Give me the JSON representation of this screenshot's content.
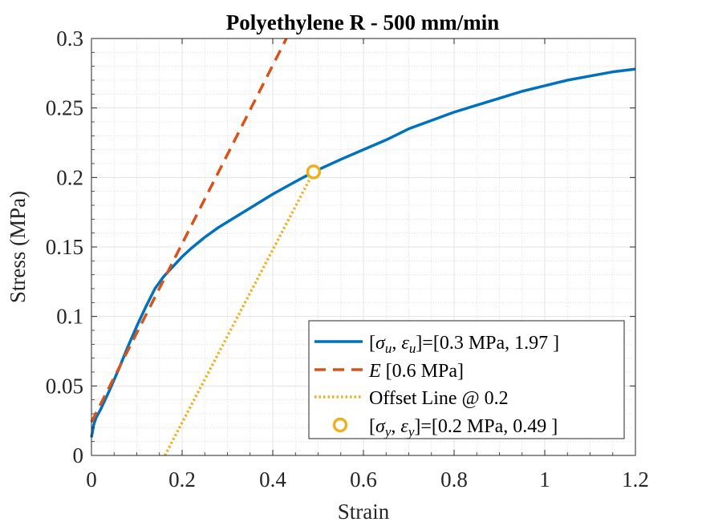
{
  "chart_data": {
    "type": "line",
    "title": "Polyethylene R - 500 mm/min",
    "xlabel": "Strain",
    "ylabel": "Stress (MPa)",
    "xlim": [
      0,
      1.2
    ],
    "ylim": [
      0,
      0.3
    ],
    "xticks": [
      0,
      0.2,
      0.4,
      0.6,
      0.8,
      1,
      1.2
    ],
    "xtick_labels": [
      "0",
      "0.2",
      "0.4",
      "0.6",
      "0.8",
      "1",
      "1.2"
    ],
    "yticks": [
      0,
      0.05,
      0.1,
      0.15,
      0.2,
      0.25,
      0.3
    ],
    "ytick_labels": [
      "0",
      "0.05",
      "0.1",
      "0.15",
      "0.2",
      "0.25",
      "0.3"
    ],
    "grid": true,
    "minor_grid": true,
    "legend_placement": "bottom-right",
    "series": [
      {
        "name": "[σu, εu]=[0.3 MPa, 1.97 ]",
        "legend_main": "[σ",
        "legend_sub1": "u",
        "legend_mid": ", ε",
        "legend_sub2": "u",
        "legend_tail": "]=[0.3 MPa, 1.97 ]",
        "style": "solid",
        "color": "#0072BD",
        "x": [
          0,
          0.005,
          0.01,
          0.02,
          0.04,
          0.06,
          0.08,
          0.1,
          0.12,
          0.14,
          0.16,
          0.18,
          0.2,
          0.22,
          0.25,
          0.28,
          0.3,
          0.35,
          0.4,
          0.45,
          0.49,
          0.55,
          0.6,
          0.65,
          0.7,
          0.75,
          0.8,
          0.85,
          0.9,
          0.95,
          1.0,
          1.05,
          1.1,
          1.15,
          1.2
        ],
        "y": [
          0.013,
          0.022,
          0.027,
          0.033,
          0.047,
          0.062,
          0.078,
          0.093,
          0.107,
          0.12,
          0.129,
          0.136,
          0.143,
          0.149,
          0.157,
          0.164,
          0.168,
          0.178,
          0.188,
          0.197,
          0.204,
          0.213,
          0.22,
          0.227,
          0.235,
          0.241,
          0.247,
          0.252,
          0.257,
          0.262,
          0.266,
          0.27,
          0.273,
          0.276,
          0.278
        ]
      },
      {
        "name": "E [0.6 MPa]",
        "legend_main": "E",
        "legend_tail": " [0.6 MPa]",
        "style": "dashed",
        "color": "#D95319",
        "x": [
          0,
          0.43
        ],
        "y": [
          0.024,
          0.3
        ]
      },
      {
        "name": "Offset Line @ 0.2",
        "legend_main": "Offset Line @ 0.2",
        "style": "dotted",
        "color": "#EDB120",
        "x": [
          0.162,
          0.49
        ],
        "y": [
          0,
          0.204
        ]
      },
      {
        "name": "[σy, εy]=[0.2 MPa, 0.49 ]",
        "legend_main": "[σ",
        "legend_sub1": "y",
        "legend_mid": ", ε",
        "legend_sub2": "y",
        "legend_tail": "]=[0.2 MPa, 0.49 ]",
        "style": "marker",
        "color": "#EDB120",
        "x": [
          0.49
        ],
        "y": [
          0.204
        ]
      }
    ]
  }
}
